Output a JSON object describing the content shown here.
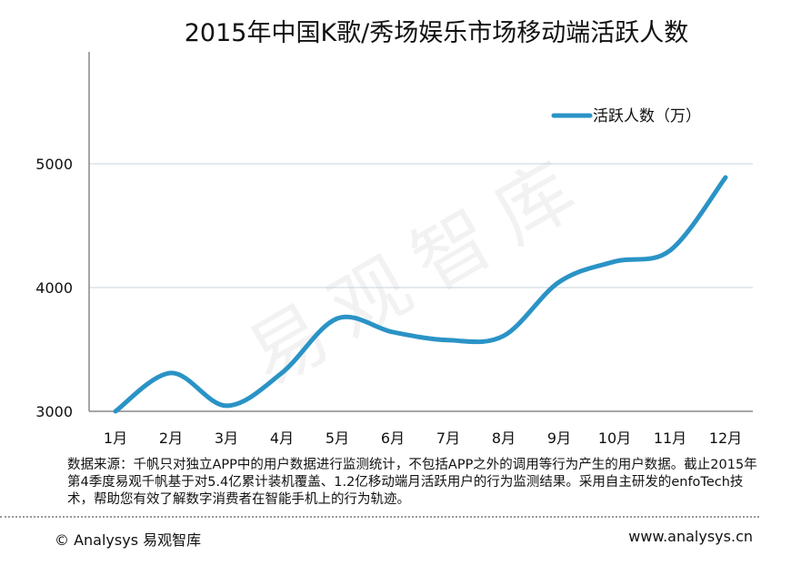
{
  "chart_data": {
    "type": "line",
    "title": "2015年中国K歌/秀场娱乐市场移动端活跃人数",
    "categories": [
      "1月",
      "2月",
      "3月",
      "4月",
      "5月",
      "6月",
      "7月",
      "8月",
      "9月",
      "10月",
      "11月",
      "12月"
    ],
    "series": [
      {
        "name": "活跃人数（万）",
        "values": [
          3000,
          3310,
          3045,
          3310,
          3750,
          3640,
          3575,
          3610,
          4045,
          4210,
          4300,
          4890
        ],
        "color": "#2a93c6"
      }
    ],
    "yticks": [
      3000,
      4000,
      5000
    ],
    "ylim": [
      3000,
      5000
    ],
    "grid": true,
    "legend": "top-right",
    "smooth": true
  },
  "note": "数据来源：千帆只对独立APP中的用户数据进行监测统计，不包括APP之外的调用等行为产生的用户数据。截止2015年第4季度易观千帆基于对5.4亿累计装机覆盖、1.2亿移动端月活跃用户的行为监测结果。采用自主研发的enfoTech技术，帮助您有效了解数字消费者在智能手机上的行为轨迹。",
  "footer": {
    "copyright": "© Analysys 易观智库",
    "url": "www.analysys.cn"
  },
  "watermark": "易观智库"
}
